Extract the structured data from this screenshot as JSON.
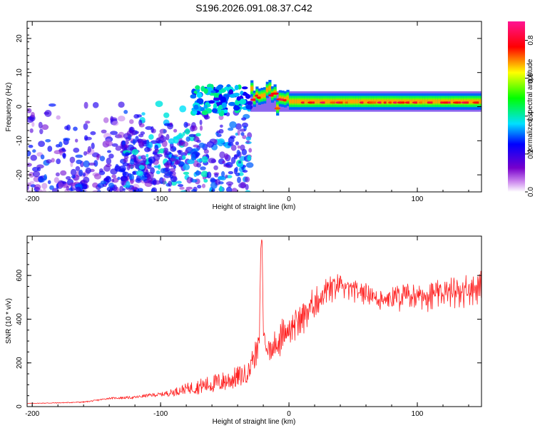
{
  "figure_title": "S196.2026.091.08.37.C42",
  "chart_data": [
    {
      "type": "heatmap",
      "title": "S196.2026.091.08.37.C42",
      "xlabel": "Height of straight line (km)",
      "ylabel": "Frequency (Hz)",
      "xlim": [
        -204,
        150
      ],
      "ylim": [
        -25,
        25
      ],
      "xticks": [
        -200,
        -100,
        0,
        100
      ],
      "yticks": [
        -20,
        -10,
        0,
        10,
        20
      ],
      "colorbar": {
        "label": "Normalized spectral amplitude",
        "range": [
          0.0,
          0.9
        ],
        "ticks": [
          "0.0",
          "0.2",
          "0.4",
          "0.6",
          "0.8"
        ],
        "colors": [
          "#ffffff",
          "#7700cc",
          "#0000ff",
          "#00ffff",
          "#00ff00",
          "#ffff00",
          "#ff0000",
          "#ff1493"
        ]
      },
      "band": {
        "x_start": -30,
        "x_end": 150,
        "center_hz": 1.5,
        "width_hz": 3,
        "peak_amplitude": 0.9
      },
      "scatter_regions": [
        {
          "x_range": [
            -204,
            -110
          ],
          "f_range": [
            -25,
            25
          ],
          "amplitude_range": [
            0.05,
            0.3
          ]
        },
        {
          "x_range": [
            -130,
            -30
          ],
          "f_range": [
            -15,
            15
          ],
          "amplitude_range": [
            0.1,
            0.4
          ]
        }
      ]
    },
    {
      "type": "line",
      "xlabel": "Height of straight line (km)",
      "ylabel": "SNR (10 * v/v)",
      "xlim": [
        -204,
        150
      ],
      "ylim": [
        0,
        780
      ],
      "xticks": [
        -200,
        -100,
        0,
        100
      ],
      "yticks": [
        0,
        200,
        400,
        600
      ],
      "color": "#ff2020",
      "x": [
        -204,
        -180,
        -160,
        -150,
        -140,
        -120,
        -110,
        -100,
        -90,
        -80,
        -70,
        -60,
        -50,
        -40,
        -35,
        -30,
        -25,
        -23,
        -22,
        -21,
        -20,
        -18,
        -15,
        -10,
        -5,
        0,
        5,
        10,
        15,
        20,
        25,
        30,
        40,
        50,
        60,
        70,
        80,
        90,
        100,
        110,
        120,
        130,
        140,
        150
      ],
      "values": [
        15,
        18,
        22,
        30,
        40,
        45,
        55,
        60,
        75,
        95,
        110,
        125,
        140,
        160,
        170,
        190,
        230,
        300,
        720,
        780,
        350,
        260,
        240,
        270,
        310,
        340,
        360,
        390,
        420,
        460,
        480,
        520,
        540,
        520,
        510,
        480,
        480,
        490,
        490,
        495,
        500,
        510,
        520,
        530
      ],
      "fluctuation": [
        2,
        3,
        4,
        5,
        6,
        10,
        12,
        15,
        30,
        40,
        60,
        70,
        80,
        85,
        80,
        70,
        70,
        60,
        10,
        5,
        60,
        60,
        80,
        90,
        90,
        90,
        90,
        90,
        90,
        90,
        90,
        90,
        60,
        55,
        55,
        70,
        75,
        75,
        70,
        75,
        80,
        85,
        85,
        85
      ]
    }
  ]
}
